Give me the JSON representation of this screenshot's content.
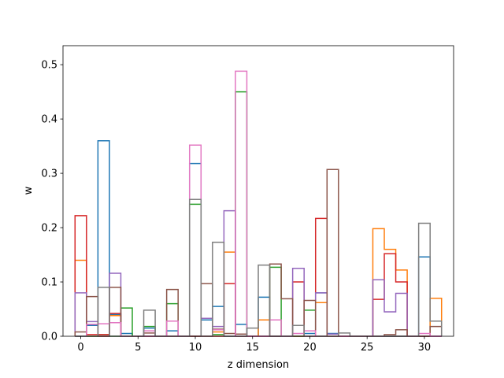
{
  "chart_data": {
    "type": "step",
    "xlabel": "z dimension",
    "ylabel": "w",
    "xlim": [
      -1.55,
      32.55
    ],
    "ylim": [
      0,
      0.535
    ],
    "xticks": [
      0,
      5,
      10,
      15,
      20,
      25,
      30
    ],
    "yticks": [
      0.0,
      0.1,
      0.2,
      0.3,
      0.4,
      0.5
    ],
    "grid": false,
    "legend": "none",
    "bins": 32,
    "series": [
      {
        "color": "#1f77b4",
        "values": [
          0,
          0.02,
          0.36,
          0.04,
          0.005,
          0,
          0.015,
          0,
          0.01,
          0,
          0.318,
          0.03,
          0.055,
          0,
          0.022,
          0,
          0.072,
          0,
          0,
          0,
          0.005,
          0.08,
          0.005,
          0,
          0,
          0,
          0,
          0,
          0,
          0,
          0.146,
          0
        ]
      },
      {
        "color": "#ff7f0e",
        "values": [
          0.14,
          0,
          0,
          0.038,
          0,
          0,
          0,
          0,
          0,
          0,
          0,
          0,
          0.008,
          0.155,
          0,
          0,
          0.03,
          0,
          0,
          0,
          0,
          0.062,
          0,
          0,
          0,
          0,
          0.198,
          0.16,
          0.122,
          0,
          0,
          0.07
        ]
      },
      {
        "color": "#2ca02c",
        "values": [
          0,
          0,
          0.003,
          0,
          0.052,
          0,
          0.018,
          0,
          0.06,
          0,
          0.243,
          0,
          0.003,
          0,
          0.45,
          0,
          0,
          0.127,
          0,
          0,
          0.048,
          0,
          0,
          0,
          0,
          0,
          0,
          0,
          0,
          0,
          0,
          0
        ]
      },
      {
        "color": "#d62728",
        "values": [
          0.222,
          0.003,
          0.003,
          0.042,
          0,
          0,
          0,
          0,
          0,
          0,
          0,
          0,
          0,
          0.097,
          0,
          0,
          0,
          0,
          0,
          0.1,
          0,
          0.217,
          0,
          0,
          0,
          0,
          0.068,
          0.152,
          0.1,
          0,
          0,
          0
        ]
      },
      {
        "color": "#9467bd",
        "values": [
          0.08,
          0.027,
          0,
          0.116,
          0,
          0,
          0,
          0,
          0,
          0,
          0,
          0.033,
          0.018,
          0.231,
          0,
          0,
          0,
          0,
          0,
          0.125,
          0,
          0.08,
          0.004,
          0,
          0,
          0,
          0.104,
          0.045,
          0.079,
          0,
          0,
          0
        ]
      },
      {
        "color": "#8c564b",
        "values": [
          0.008,
          0.073,
          0,
          0.09,
          0,
          0,
          0.006,
          0,
          0.086,
          0,
          0,
          0.097,
          0.013,
          0.005,
          0.004,
          0,
          0,
          0.133,
          0.069,
          0,
          0.066,
          0,
          0.307,
          0,
          0,
          0,
          0,
          0.003,
          0.012,
          0,
          0,
          0.018
        ]
      },
      {
        "color": "#e377c2",
        "values": [
          0,
          0.022,
          0.023,
          0.025,
          0,
          0,
          0.01,
          0,
          0.028,
          0,
          0.352,
          0,
          0.012,
          0,
          0.488,
          0,
          0,
          0.03,
          0,
          0.005,
          0.01,
          0,
          0,
          0,
          0,
          0,
          0,
          0,
          0,
          0,
          0.005,
          0
        ]
      },
      {
        "color": "#7f7f7f",
        "values": [
          0,
          0,
          0.09,
          0,
          0,
          0,
          0.048,
          0,
          0,
          0,
          0.252,
          0,
          0.173,
          0,
          0,
          0.015,
          0.131,
          0,
          0,
          0.02,
          0,
          0,
          0,
          0.006,
          0,
          0,
          0,
          0,
          0,
          0,
          0.208,
          0.028
        ]
      }
    ]
  }
}
